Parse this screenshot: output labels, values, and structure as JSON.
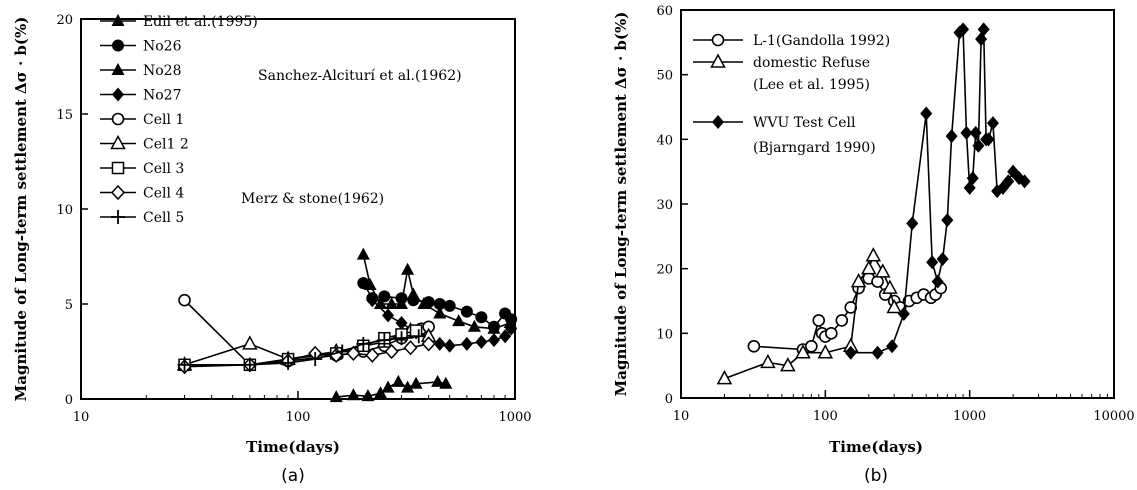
{
  "chart_data": [
    {
      "panel": "(a)",
      "type": "line",
      "xscale": "log",
      "xlim": [
        10,
        1000
      ],
      "ylim": [
        0,
        20
      ],
      "xticks": [
        "10",
        "100",
        "1000"
      ],
      "yticks": [
        "0",
        "5",
        "10",
        "15",
        "20"
      ],
      "xlabel": "Time(days)",
      "ylabel": "Magnitude of Long-term settlement Δσ · b(%)",
      "legend_position": "top-left",
      "annotations": [
        "Sanchez-Alciturí et al.(1962)",
        "Merz & stone(1962)"
      ],
      "series": [
        {
          "name": "Edil et al.(1995)",
          "marker": "triangle-filled",
          "line": true,
          "points": [
            [
              150,
              0.1
            ],
            [
              180,
              0.2
            ],
            [
              210,
              0.15
            ],
            [
              240,
              0.3
            ],
            [
              260,
              0.6
            ],
            [
              290,
              0.9
            ],
            [
              320,
              0.6
            ],
            [
              350,
              0.8
            ],
            [
              440,
              0.9
            ],
            [
              480,
              0.8
            ]
          ]
        },
        {
          "name": "No26",
          "marker": "circle-filled",
          "line": true,
          "points": [
            [
              200,
              6.1
            ],
            [
              220,
              5.3
            ],
            [
              250,
              5.4
            ],
            [
              300,
              5.3
            ],
            [
              340,
              5.2
            ],
            [
              400,
              5.1
            ],
            [
              450,
              5.0
            ],
            [
              500,
              4.9
            ],
            [
              600,
              4.6
            ],
            [
              700,
              4.3
            ],
            [
              800,
              3.8
            ],
            [
              900,
              4.5
            ],
            [
              960,
              4.2
            ]
          ]
        },
        {
          "name": "No28",
          "marker": "triangle-filled",
          "line": true,
          "points": [
            [
              200,
              7.6
            ],
            [
              215,
              6.0
            ],
            [
              240,
              5.0
            ],
            [
              270,
              5.0
            ],
            [
              300,
              5.0
            ],
            [
              320,
              6.8
            ],
            [
              340,
              5.5
            ],
            [
              380,
              5.0
            ],
            [
              450,
              4.5
            ],
            [
              550,
              4.1
            ],
            [
              650,
              3.8
            ],
            [
              800,
              3.7
            ],
            [
              950,
              4.0
            ]
          ]
        },
        {
          "name": "No27",
          "marker": "diamond-filled",
          "line": true,
          "points": [
            [
              220,
              5.2
            ],
            [
              260,
              4.4
            ],
            [
              300,
              4.0
            ],
            [
              350,
              3.5
            ],
            [
              400,
              3.2
            ],
            [
              450,
              2.9
            ],
            [
              500,
              2.8
            ],
            [
              600,
              2.9
            ],
            [
              700,
              3.0
            ],
            [
              800,
              3.1
            ],
            [
              900,
              3.3
            ],
            [
              960,
              3.7
            ]
          ]
        },
        {
          "name": "Cell 1",
          "marker": "circle-open",
          "line": true,
          "points": [
            [
              30,
              5.2
            ],
            [
              60,
              1.8
            ],
            [
              90,
              2.0
            ],
            [
              150,
              2.3
            ],
            [
              200,
              2.5
            ],
            [
              250,
              2.8
            ],
            [
              300,
              3.2
            ],
            [
              330,
              3.5
            ],
            [
              370,
              3.7
            ],
            [
              400,
              3.8
            ]
          ]
        },
        {
          "name": "Cel1 2",
          "marker": "triangle-open",
          "line": true,
          "points": [
            [
              30,
              1.8
            ],
            [
              60,
              2.9
            ],
            [
              90,
              2.1
            ],
            [
              150,
              2.5
            ],
            [
              250,
              3.0
            ],
            [
              330,
              3.6
            ],
            [
              400,
              3.3
            ]
          ]
        },
        {
          "name": "Cell 3",
          "marker": "square-open",
          "line": true,
          "points": [
            [
              30,
              1.8
            ],
            [
              60,
              1.8
            ],
            [
              90,
              2.1
            ],
            [
              150,
              2.4
            ],
            [
              200,
              2.8
            ],
            [
              250,
              3.2
            ],
            [
              300,
              3.4
            ],
            [
              350,
              3.6
            ]
          ]
        },
        {
          "name": "Cell 4",
          "marker": "diamond-open",
          "line": true,
          "points": [
            [
              30,
              1.7
            ],
            [
              60,
              1.8
            ],
            [
              90,
              2.0
            ],
            [
              120,
              2.4
            ],
            [
              150,
              2.3
            ],
            [
              180,
              2.4
            ],
            [
              220,
              2.3
            ],
            [
              270,
              2.5
            ],
            [
              330,
              2.7
            ],
            [
              400,
              2.9
            ]
          ]
        },
        {
          "name": "Cell 5",
          "marker": "plus",
          "line": true,
          "points": [
            [
              30,
              1.8
            ],
            [
              60,
              1.8
            ],
            [
              90,
              1.9
            ],
            [
              120,
              2.1
            ],
            [
              160,
              2.5
            ],
            [
              200,
              2.9
            ],
            [
              250,
              3.1
            ],
            [
              300,
              3.2
            ],
            [
              360,
              3.3
            ]
          ]
        }
      ]
    },
    {
      "panel": "(b)",
      "type": "line",
      "xscale": "log",
      "xlim": [
        10,
        10000
      ],
      "ylim": [
        0,
        60
      ],
      "xticks": [
        "10",
        "100",
        "1000",
        "10000"
      ],
      "yticks": [
        "0",
        "10",
        "20",
        "30",
        "40",
        "50",
        "60"
      ],
      "xlabel": "Time(days)",
      "ylabel": "Magnitude of Long-term settlement Δσ · b(%)",
      "legend_position": "top-left",
      "series": [
        {
          "name": "L-1(Gandolla 1992)",
          "marker": "circle-open",
          "line": true,
          "points": [
            [
              32,
              8
            ],
            [
              70,
              7.5
            ],
            [
              80,
              8
            ],
            [
              90,
              12
            ],
            [
              95,
              10
            ],
            [
              100,
              9.5
            ],
            [
              110,
              10
            ],
            [
              130,
              12
            ],
            [
              150,
              14
            ],
            [
              170,
              17
            ],
            [
              200,
              18.5
            ],
            [
              230,
              18
            ],
            [
              260,
              16
            ],
            [
              300,
              15
            ],
            [
              330,
              14
            ],
            [
              380,
              15
            ],
            [
              430,
              15.5
            ],
            [
              480,
              16
            ],
            [
              540,
              15.5
            ],
            [
              580,
              16
            ],
            [
              630,
              17
            ]
          ]
        },
        {
          "name": "domestic Refuse (Lee et al. 1995)",
          "marker": "triangle-open",
          "line": true,
          "points": [
            [
              20,
              3
            ],
            [
              40,
              5.5
            ],
            [
              55,
              5
            ],
            [
              70,
              7
            ],
            [
              100,
              7
            ],
            [
              150,
              8
            ],
            [
              170,
              18
            ],
            [
              200,
              20
            ],
            [
              215,
              22
            ],
            [
              250,
              19.5
            ],
            [
              280,
              17
            ],
            [
              300,
              14
            ]
          ]
        },
        {
          "name": "WVU Test Cell (Bjarngard 1990)",
          "marker": "diamond-filled",
          "line": true,
          "points": [
            [
              150,
              7
            ],
            [
              230,
              7
            ],
            [
              290,
              8
            ],
            [
              350,
              13
            ],
            [
              400,
              27
            ],
            [
              500,
              44
            ],
            [
              550,
              21
            ],
            [
              600,
              18
            ],
            [
              650,
              21.5
            ],
            [
              700,
              27.5
            ],
            [
              750,
              40.5
            ],
            [
              850,
              56.5
            ],
            [
              900,
              57
            ],
            [
              950,
              41
            ],
            [
              1000,
              32.5
            ],
            [
              1050,
              34
            ],
            [
              1100,
              41
            ],
            [
              1150,
              39
            ],
            [
              1200,
              55.5
            ],
            [
              1250,
              57
            ],
            [
              1300,
              40
            ],
            [
              1350,
              40
            ],
            [
              1450,
              42.5
            ],
            [
              1550,
              32
            ],
            [
              1700,
              32.5
            ],
            [
              1850,
              33.5
            ],
            [
              2000,
              35
            ],
            [
              2200,
              34
            ],
            [
              2400,
              33.5
            ]
          ]
        }
      ],
      "annotations": []
    }
  ],
  "panel_labels": [
    "(a)",
    "(b)"
  ],
  "legend_a": {
    "entries": [
      "Edil et al.(1995)",
      "No26",
      "No28",
      "No27",
      "Cell 1",
      "Cel1 2",
      "Cell 3",
      "Cell 4",
      "Cell 5"
    ],
    "annotation_1": "Sanchez-Alciturí et al.(1962)",
    "annotation_2": "Merz & stone(1962)"
  },
  "legend_b": {
    "line1": "L-1(Gandolla 1992)",
    "line2": "domestic Refuse",
    "line3": "(Lee et al. 1995)",
    "line4": "WVU Test Cell",
    "line5": "(Bjarngard 1990)"
  },
  "colors": {
    "ink": "#000000",
    "background": "#ffffff"
  }
}
